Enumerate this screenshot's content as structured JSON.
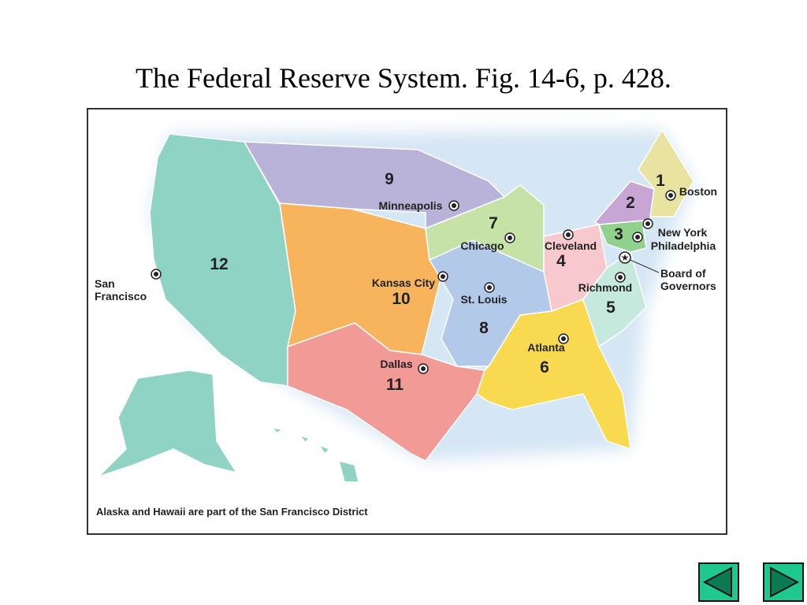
{
  "title": "The Federal Reserve System. Fig. 14-6, p. 428.",
  "map": {
    "districts": [
      {
        "number": 1,
        "city": "Boston"
      },
      {
        "number": 2,
        "city": "New York"
      },
      {
        "number": 3,
        "city": "Philadelphia"
      },
      {
        "number": 4,
        "city": "Cleveland"
      },
      {
        "number": 5,
        "city": "Richmond"
      },
      {
        "number": 6,
        "city": "Atlanta"
      },
      {
        "number": 7,
        "city": "Chicago"
      },
      {
        "number": 8,
        "city": "St. Louis"
      },
      {
        "number": 9,
        "city": "Minneapolis"
      },
      {
        "number": 10,
        "city": "Kansas City"
      },
      {
        "number": 11,
        "city": "Dallas"
      },
      {
        "number": 12,
        "city": "San Francisco"
      }
    ],
    "board": "Board of Governors",
    "note": "Alaska and Hawaii are part of the San Francisco District"
  }
}
